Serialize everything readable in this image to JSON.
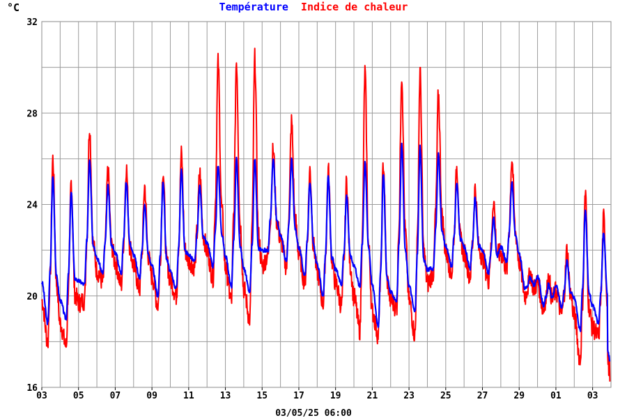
{
  "chart_data": {
    "type": "line",
    "title_series": [
      {
        "label": "Température",
        "color": "#0000ff"
      },
      {
        "label": "Indice de chaleur",
        "color": "#ff0000"
      }
    ],
    "unit_label": "°C",
    "footer": "03/05/25 06:00",
    "ylim": [
      16,
      32
    ],
    "yticks": [
      "16",
      "20",
      "24",
      "28",
      "32"
    ],
    "xticks": [
      "03",
      "05",
      "07",
      "09",
      "11",
      "13",
      "15",
      "17",
      "19",
      "21",
      "23",
      "25",
      "27",
      "29",
      "01",
      "03"
    ],
    "grid": true,
    "day_extremes": [
      {
        "max_t": 25.2,
        "min_t": 18.8,
        "max_h": 26.0,
        "min_h": 18.0
      },
      {
        "max_t": 24.5,
        "min_t": 19.0,
        "max_h": 25.0,
        "min_h": 17.8
      },
      {
        "max_t": 26.0,
        "min_t": 20.5,
        "max_h": 27.4,
        "min_h": 19.8
      },
      {
        "max_t": 24.8,
        "min_t": 21.0,
        "max_h": 25.5,
        "min_h": 20.6
      },
      {
        "max_t": 25.0,
        "min_t": 21.0,
        "max_h": 25.6,
        "min_h": 20.5
      },
      {
        "max_t": 24.0,
        "min_t": 20.8,
        "max_h": 24.8,
        "min_h": 20.3
      },
      {
        "max_t": 25.0,
        "min_t": 20.0,
        "max_h": 25.5,
        "min_h": 19.6
      },
      {
        "max_t": 25.5,
        "min_t": 20.3,
        "max_h": 26.2,
        "min_h": 20.0
      },
      {
        "max_t": 24.8,
        "min_t": 21.5,
        "max_h": 25.4,
        "min_h": 21.3
      },
      {
        "max_t": 25.7,
        "min_t": 21.3,
        "max_h": 30.2,
        "min_h": 20.8
      },
      {
        "max_t": 26.0,
        "min_t": 20.4,
        "max_h": 30.3,
        "min_h": 19.8
      },
      {
        "max_t": 26.0,
        "min_t": 20.2,
        "max_h": 30.4,
        "min_h": 19.0
      },
      {
        "max_t": 26.0,
        "min_t": 22.0,
        "max_h": 26.4,
        "min_h": 21.8
      },
      {
        "max_t": 26.0,
        "min_t": 21.5,
        "max_h": 27.6,
        "min_h": 21.3
      },
      {
        "max_t": 25.0,
        "min_t": 20.9,
        "max_h": 25.5,
        "min_h": 20.6
      },
      {
        "max_t": 25.2,
        "min_t": 20.0,
        "max_h": 25.5,
        "min_h": 19.7
      },
      {
        "max_t": 24.4,
        "min_t": 20.5,
        "max_h": 25.0,
        "min_h": 19.6
      },
      {
        "max_t": 25.8,
        "min_t": 20.4,
        "max_h": 29.8,
        "min_h": 18.5
      },
      {
        "max_t": 25.3,
        "min_t": 18.7,
        "max_h": 25.8,
        "min_h": 18.3
      },
      {
        "max_t": 26.6,
        "min_t": 19.8,
        "max_h": 29.7,
        "min_h": 19.5
      },
      {
        "max_t": 26.5,
        "min_t": 19.3,
        "max_h": 29.8,
        "min_h": 18.3
      },
      {
        "max_t": 26.2,
        "min_t": 21.2,
        "max_h": 28.8,
        "min_h": 21.0
      },
      {
        "max_t": 25.0,
        "min_t": 21.3,
        "max_h": 25.6,
        "min_h": 21.0
      },
      {
        "max_t": 24.3,
        "min_t": 21.2,
        "max_h": 24.7,
        "min_h": 20.9
      },
      {
        "max_t": 23.4,
        "min_t": 21.0,
        "max_h": 24.2,
        "min_h": 20.7
      },
      {
        "max_t": 25.0,
        "min_t": 21.5,
        "max_h": 26.0,
        "min_h": 21.2
      },
      {
        "max_t": 20.8,
        "min_t": 20.3,
        "max_h": 21.0,
        "min_h": 20.0
      },
      {
        "max_t": 20.5,
        "min_t": 19.6,
        "max_h": 20.8,
        "min_h": 19.4
      },
      {
        "max_t": 21.5,
        "min_t": 19.5,
        "max_h": 22.0,
        "min_h": 19.2
      },
      {
        "max_t": 23.7,
        "min_t": 18.5,
        "max_h": 24.5,
        "min_h": 17.2
      },
      {
        "max_t": 22.8,
        "min_t": 18.8,
        "max_h": 23.4,
        "min_h": 18.2
      }
    ],
    "final_value": {
      "temperature": 17.2,
      "heat_index": 16.7
    }
  }
}
